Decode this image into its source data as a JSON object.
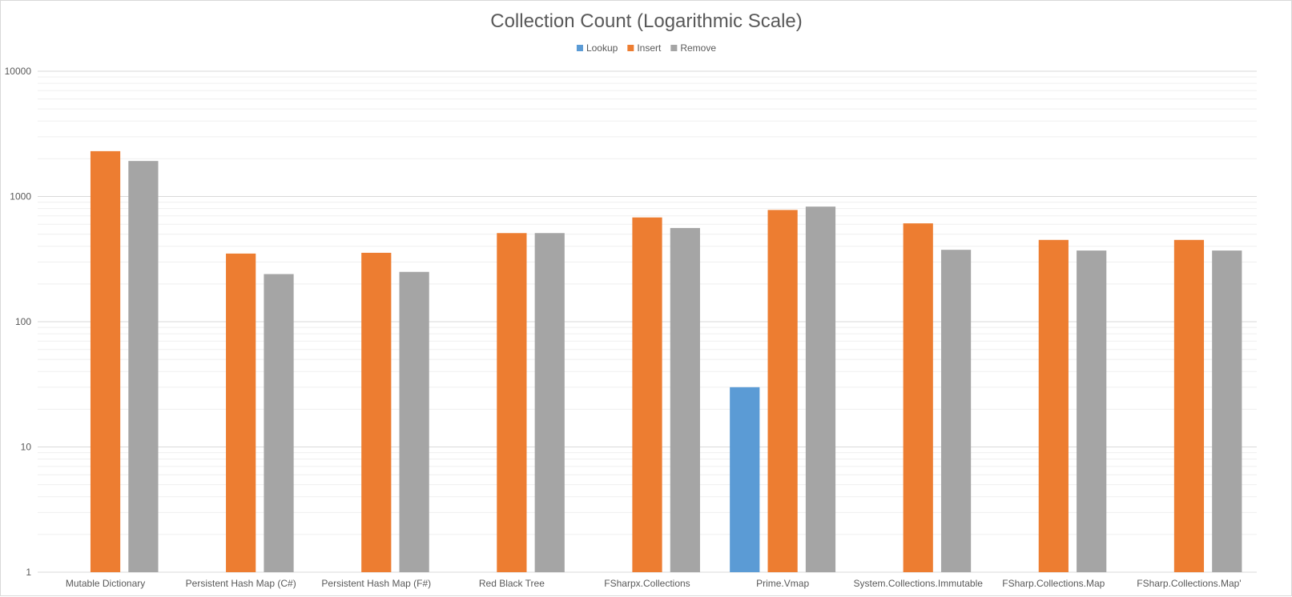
{
  "chart_data": {
    "type": "bar",
    "title": "Collection Count (Logarithmic Scale)",
    "xlabel": "",
    "ylabel": "",
    "yscale": "log",
    "ylim": [
      1,
      10000
    ],
    "yticks": [
      1,
      10,
      100,
      1000,
      10000
    ],
    "ytick_labels": [
      "1",
      "10",
      "100",
      "1000",
      "10000"
    ],
    "grid": true,
    "legend_position": "top",
    "categories": [
      "Mutable Dictionary",
      "Persistent Hash Map (C#)",
      "Persistent Hash Map (F#)",
      "Red Black Tree",
      "FSharpx.Collections",
      "Prime.Vmap",
      "System.Collections.Immutable",
      "FSharp.Collections.Map",
      "FSharp.Collections.Map'"
    ],
    "series": [
      {
        "name": "Lookup",
        "color": "#5b9bd5",
        "values": [
          0,
          0,
          0,
          0,
          0,
          30,
          0,
          0,
          0
        ]
      },
      {
        "name": "Insert",
        "color": "#ed7d31",
        "values": [
          2300,
          350,
          355,
          510,
          680,
          780,
          610,
          450,
          450
        ]
      },
      {
        "name": "Remove",
        "color": "#a5a5a5",
        "values": [
          1920,
          240,
          250,
          510,
          560,
          830,
          375,
          370,
          370
        ]
      }
    ]
  }
}
